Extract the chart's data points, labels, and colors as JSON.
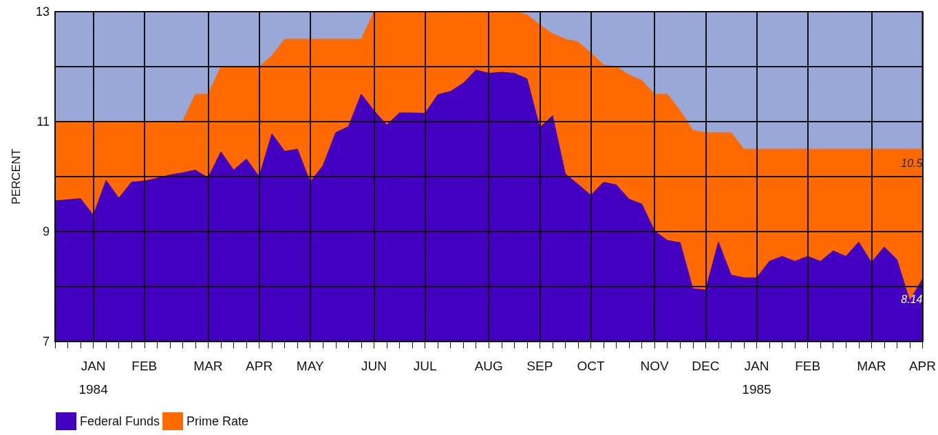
{
  "chart_data": {
    "type": "area",
    "ylabel": "PERCENT",
    "categories": [
      null,
      null,
      null,
      "JAN\n1984",
      null,
      null,
      null,
      "FEB",
      null,
      null,
      null,
      null,
      "MAR",
      null,
      null,
      null,
      "APR",
      null,
      null,
      null,
      "MAY",
      null,
      null,
      null,
      null,
      "JUN",
      null,
      null,
      null,
      "JUL",
      null,
      null,
      null,
      null,
      "AUG",
      null,
      null,
      null,
      "SEP",
      null,
      null,
      null,
      "OCT",
      null,
      null,
      null,
      null,
      "NOV",
      null,
      null,
      null,
      "DEC",
      null,
      null,
      null,
      "JAN\n1985",
      null,
      null,
      null,
      "FEB",
      null,
      null,
      null,
      null,
      "MAR",
      null,
      null,
      null,
      "APR"
    ],
    "series": [
      {
        "name": "Federal Funds",
        "color": "#4400c0",
        "values": [
          9.56,
          9.58,
          9.6,
          9.3,
          9.93,
          9.61,
          9.9,
          9.92,
          9.97,
          10.03,
          10.07,
          10.12,
          9.98,
          10.45,
          10.12,
          10.32,
          10.0,
          10.78,
          10.46,
          10.5,
          9.9,
          10.2,
          10.8,
          10.91,
          11.5,
          11.2,
          10.94,
          11.16,
          11.16,
          11.15,
          11.49,
          11.55,
          11.7,
          11.94,
          11.88,
          11.9,
          11.88,
          11.78,
          10.89,
          11.11,
          10.05,
          9.86,
          9.66,
          9.9,
          9.85,
          9.59,
          9.5,
          9.01,
          8.84,
          8.8,
          7.96,
          7.94,
          8.81,
          8.21,
          8.16,
          8.16,
          8.46,
          8.55,
          8.46,
          8.55,
          8.46,
          8.65,
          8.55,
          8.81,
          8.44,
          8.72,
          8.49,
          7.74,
          8.14
        ],
        "value_labels": [
          null,
          null,
          null,
          null,
          null,
          null,
          null,
          null,
          null,
          null,
          null,
          null,
          null,
          null,
          null,
          null,
          null,
          null,
          null,
          null,
          null,
          null,
          null,
          null,
          null,
          null,
          null,
          null,
          null,
          null,
          null,
          null,
          null,
          null,
          null,
          null,
          null,
          null,
          null,
          null,
          null,
          null,
          null,
          null,
          null,
          null,
          null,
          null,
          null,
          null,
          null,
          null,
          null,
          null,
          null,
          null,
          null,
          null,
          null,
          null,
          null,
          null,
          null,
          null,
          null,
          null,
          null,
          null,
          "8.14"
        ]
      },
      {
        "name": "Prime Rate",
        "color": "#ff6a00",
        "values": [
          11,
          11,
          11,
          11,
          11,
          11,
          11,
          11,
          11,
          11,
          11,
          11.5,
          11.5,
          12,
          12,
          12,
          12,
          12.2,
          12.5,
          12.5,
          12.5,
          12.5,
          12.5,
          12.5,
          12.5,
          13,
          13,
          13,
          13,
          13,
          13,
          13,
          13,
          13,
          13,
          13,
          13,
          12.95,
          12.76,
          12.6,
          12.5,
          12.45,
          12.25,
          12.03,
          12,
          11.85,
          11.75,
          11.5,
          11.5,
          11.2,
          10.84,
          10.8,
          10.8,
          10.8,
          10.5,
          10.5,
          10.5,
          10.5,
          10.5,
          10.5,
          10.5,
          10.5,
          10.5,
          10.5,
          10.5,
          10.5,
          10.5,
          10.5,
          10.5
        ],
        "value_labels": [
          null,
          null,
          null,
          null,
          null,
          null,
          null,
          null,
          null,
          null,
          null,
          null,
          null,
          null,
          null,
          null,
          null,
          null,
          null,
          null,
          null,
          null,
          null,
          null,
          null,
          null,
          null,
          null,
          null,
          null,
          null,
          null,
          null,
          null,
          null,
          null,
          null,
          null,
          null,
          null,
          null,
          null,
          null,
          null,
          null,
          null,
          null,
          null,
          null,
          null,
          null,
          null,
          null,
          null,
          null,
          null,
          null,
          null,
          null,
          null,
          null,
          null,
          null,
          null,
          null,
          null,
          null,
          null,
          "10.5"
        ]
      }
    ],
    "ylim": [
      7,
      13
    ],
    "yticks": [
      7,
      {
        "value": 8,
        "label": null
      },
      9,
      {
        "value": 10,
        "label": null
      },
      11,
      {
        "value": 12,
        "label": null
      },
      13
    ],
    "grid": true,
    "legend": "bottom left",
    "marker": "none"
  }
}
